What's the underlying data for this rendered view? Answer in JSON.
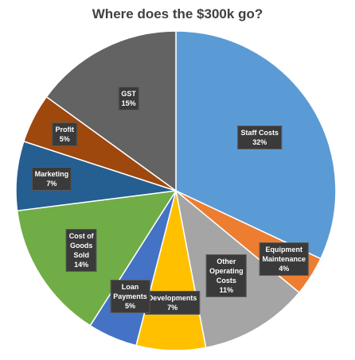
{
  "chart_data": {
    "type": "pie",
    "title": "Where does the $300k go?",
    "start_angle_deg": 0,
    "direction": "clockwise",
    "slices": [
      {
        "name": "Staff Costs",
        "label_lines": [
          "Staff Costs"
        ],
        "value": 32,
        "pct_label": "32%",
        "color": "#5B9BD5"
      },
      {
        "name": "Equipment Maintenance",
        "label_lines": [
          "Equipment",
          "Maintenance"
        ],
        "value": 4,
        "pct_label": "4%",
        "color": "#ED7D31"
      },
      {
        "name": "Other Operating Costs",
        "label_lines": [
          "Other",
          "Operating",
          "Costs"
        ],
        "value": 11,
        "pct_label": "11%",
        "color": "#A5A5A5"
      },
      {
        "name": "Developments",
        "label_lines": [
          "Developments"
        ],
        "value": 7,
        "pct_label": "7%",
        "color": "#FFC000"
      },
      {
        "name": "Loan Payments",
        "label_lines": [
          "Loan",
          "Payments"
        ],
        "value": 5,
        "pct_label": "5%",
        "color": "#4472C4"
      },
      {
        "name": "Cost of Goods Sold",
        "label_lines": [
          "Cost of",
          "Goods",
          "Sold"
        ],
        "value": 14,
        "pct_label": "14%",
        "color": "#70AD47"
      },
      {
        "name": "Marketing",
        "label_lines": [
          "Marketing"
        ],
        "value": 7,
        "pct_label": "7%",
        "color": "#255E91"
      },
      {
        "name": "Profit",
        "label_lines": [
          "Profit"
        ],
        "value": 5,
        "pct_label": "5%",
        "color": "#9E480E"
      },
      {
        "name": "GST",
        "label_lines": [
          "GST"
        ],
        "value": 15,
        "pct_label": "15%",
        "color": "#636363"
      }
    ]
  }
}
